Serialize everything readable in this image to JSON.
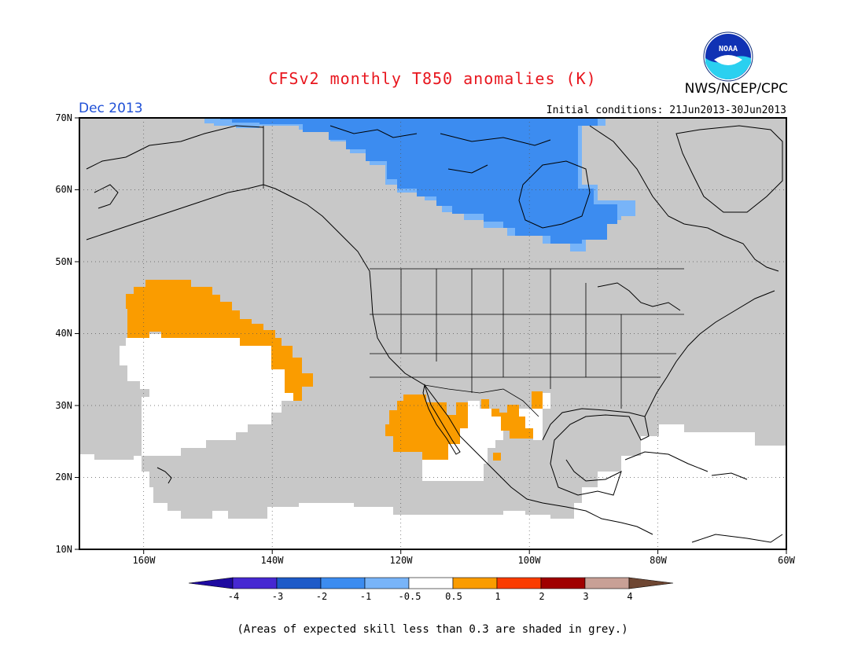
{
  "header": {
    "title": "CFSv2 monthly T850 anomalies (K)",
    "org": "NWS/NCEP/CPC",
    "valid_month": "Dec 2013",
    "initial_conditions": "Initial conditions: 21Jun2013-30Jun2013",
    "logo_text": "NOAA"
  },
  "map": {
    "lat_labels": [
      "70N",
      "60N",
      "50N",
      "40N",
      "30N",
      "20N",
      "10N"
    ],
    "lon_labels": [
      "160W",
      "140W",
      "120W",
      "100W",
      "80W",
      "60W"
    ],
    "lon_range": [
      -170,
      -60
    ],
    "lat_range": [
      10,
      70
    ],
    "colors": {
      "grey": "#c8c8c8",
      "blue": "#3c8cf0",
      "lightblue": "#78b4f8",
      "orange": "#fa9c00",
      "white": "#ffffff"
    }
  },
  "colorbar": {
    "labels": [
      "-4",
      "-3",
      "-2",
      "-1",
      "-0.5",
      "0.5",
      "1",
      "2",
      "3",
      "4"
    ],
    "colors": [
      "#1e0aa0",
      "#4628d2",
      "#1e5ac8",
      "#3c8cf0",
      "#78b4f8",
      "#ffffff",
      "#fa9c00",
      "#fa3c00",
      "#a00000",
      "#c8a096",
      "#6e4632"
    ]
  },
  "footer": {
    "note": "(Areas of expected skill less than 0.3 are shaded in grey.)"
  }
}
